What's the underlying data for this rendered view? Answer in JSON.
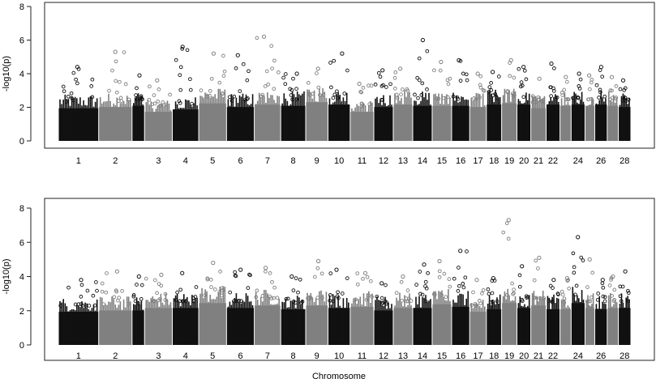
{
  "xlabel": "Chromosome",
  "chart_data": [
    {
      "type": "scatter",
      "subtype": "manhattan",
      "ylabel": "-log10(p)",
      "ylim": [
        0,
        8
      ],
      "yticks": [
        "0",
        "2",
        "4",
        "6",
        "8"
      ],
      "grid": false,
      "colors": [
        "#111111",
        "#808080"
      ],
      "chromosomes": [
        {
          "label": "1",
          "w": 1.45,
          "base": 2.7,
          "peak": 4.4
        },
        {
          "label": "2",
          "w": 1.2,
          "base": 2.8,
          "peak": 5.3
        },
        {
          "label": "",
          "w": 0.45,
          "base": 2.9,
          "peak": 3.9
        },
        {
          "label": "3",
          "w": 1.0,
          "base": 2.4,
          "peak": 3.6
        },
        {
          "label": "4",
          "w": 0.95,
          "base": 2.6,
          "peak": 5.6
        },
        {
          "label": "5",
          "w": 1.0,
          "base": 3.1,
          "peak": 5.2
        },
        {
          "label": "6",
          "w": 1.0,
          "base": 2.8,
          "peak": 5.1
        },
        {
          "label": "7",
          "w": 0.95,
          "base": 3.0,
          "peak": 6.2
        },
        {
          "label": "8",
          "w": 0.9,
          "base": 2.9,
          "peak": 4.0
        },
        {
          "label": "9",
          "w": 0.8,
          "base": 3.2,
          "peak": 4.3
        },
        {
          "label": "10",
          "w": 0.8,
          "base": 3.0,
          "peak": 5.2
        },
        {
          "label": "11",
          "w": 0.85,
          "base": 2.4,
          "peak": 3.4
        },
        {
          "label": "12",
          "w": 0.7,
          "base": 2.8,
          "peak": 4.2
        },
        {
          "label": "13",
          "w": 0.7,
          "base": 3.0,
          "peak": 4.3
        },
        {
          "label": "14",
          "w": 0.7,
          "base": 2.9,
          "peak": 6.0
        },
        {
          "label": "15",
          "w": 0.7,
          "base": 2.9,
          "peak": 4.7
        },
        {
          "label": "16",
          "w": 0.65,
          "base": 2.9,
          "peak": 4.8
        },
        {
          "label": "17",
          "w": 0.6,
          "base": 2.8,
          "peak": 4.0
        },
        {
          "label": "18",
          "w": 0.55,
          "base": 3.0,
          "peak": 4.1
        },
        {
          "label": "19",
          "w": 0.55,
          "base": 3.1,
          "peak": 4.8
        },
        {
          "label": "20",
          "w": 0.5,
          "base": 3.0,
          "peak": 4.4
        },
        {
          "label": "21",
          "w": 0.55,
          "base": 2.7,
          "peak": 3.7
        },
        {
          "label": "22",
          "w": 0.5,
          "base": 3.0,
          "peak": 4.6
        },
        {
          "label": "",
          "w": 0.4,
          "base": 2.9,
          "peak": 3.8
        },
        {
          "label": "24",
          "w": 0.5,
          "base": 3.0,
          "peak": 4.0
        },
        {
          "label": "",
          "w": 0.35,
          "base": 2.9,
          "peak": 3.9
        },
        {
          "label": "26",
          "w": 0.45,
          "base": 3.0,
          "peak": 4.4
        },
        {
          "label": "",
          "w": 0.4,
          "base": 2.9,
          "peak": 3.8
        },
        {
          "label": "28",
          "w": 0.45,
          "base": 2.8,
          "peak": 3.6
        }
      ]
    },
    {
      "type": "scatter",
      "subtype": "manhattan",
      "ylabel": "-log10(p)",
      "ylim": [
        0,
        8
      ],
      "yticks": [
        "0",
        "2",
        "4",
        "6",
        "8"
      ],
      "grid": false,
      "colors": [
        "#111111",
        "#808080"
      ],
      "chromosomes": [
        {
          "label": "1",
          "w": 1.45,
          "base": 2.7,
          "peak": 3.8
        },
        {
          "label": "2",
          "w": 1.2,
          "base": 2.8,
          "peak": 4.3
        },
        {
          "label": "",
          "w": 0.45,
          "base": 2.8,
          "peak": 4.0
        },
        {
          "label": "3",
          "w": 1.0,
          "base": 3.0,
          "peak": 4.1
        },
        {
          "label": "4",
          "w": 0.95,
          "base": 3.0,
          "peak": 4.2
        },
        {
          "label": "5",
          "w": 1.0,
          "base": 3.4,
          "peak": 4.8
        },
        {
          "label": "6",
          "w": 1.0,
          "base": 3.0,
          "peak": 4.4
        },
        {
          "label": "7",
          "w": 0.95,
          "base": 3.2,
          "peak": 4.5
        },
        {
          "label": "8",
          "w": 0.9,
          "base": 2.9,
          "peak": 4.0
        },
        {
          "label": "9",
          "w": 0.8,
          "base": 3.2,
          "peak": 4.9
        },
        {
          "label": "10",
          "w": 0.8,
          "base": 3.0,
          "peak": 4.4
        },
        {
          "label": "11",
          "w": 0.85,
          "base": 3.1,
          "peak": 4.2
        },
        {
          "label": "12",
          "w": 0.7,
          "base": 2.8,
          "peak": 3.6
        },
        {
          "label": "13",
          "w": 0.7,
          "base": 3.0,
          "peak": 4.0
        },
        {
          "label": "14",
          "w": 0.7,
          "base": 3.0,
          "peak": 4.7
        },
        {
          "label": "15",
          "w": 0.7,
          "base": 3.3,
          "peak": 4.9
        },
        {
          "label": "16",
          "w": 0.65,
          "base": 3.1,
          "peak": 5.5
        },
        {
          "label": "17",
          "w": 0.6,
          "base": 2.7,
          "peak": 3.8
        },
        {
          "label": "18",
          "w": 0.55,
          "base": 2.9,
          "peak": 3.9
        },
        {
          "label": "19",
          "w": 0.55,
          "base": 3.4,
          "peak": 7.3
        },
        {
          "label": "20",
          "w": 0.5,
          "base": 3.0,
          "peak": 4.6
        },
        {
          "label": "21",
          "w": 0.55,
          "base": 3.2,
          "peak": 5.1
        },
        {
          "label": "22",
          "w": 0.5,
          "base": 2.9,
          "peak": 3.8
        },
        {
          "label": "",
          "w": 0.4,
          "base": 2.9,
          "peak": 3.9
        },
        {
          "label": "24",
          "w": 0.5,
          "base": 3.4,
          "peak": 6.3
        },
        {
          "label": "",
          "w": 0.35,
          "base": 3.0,
          "peak": 5.0
        },
        {
          "label": "26",
          "w": 0.45,
          "base": 2.9,
          "peak": 3.8
        },
        {
          "label": "",
          "w": 0.4,
          "base": 3.0,
          "peak": 4.0
        },
        {
          "label": "28",
          "w": 0.45,
          "base": 3.0,
          "peak": 4.3
        }
      ]
    }
  ]
}
